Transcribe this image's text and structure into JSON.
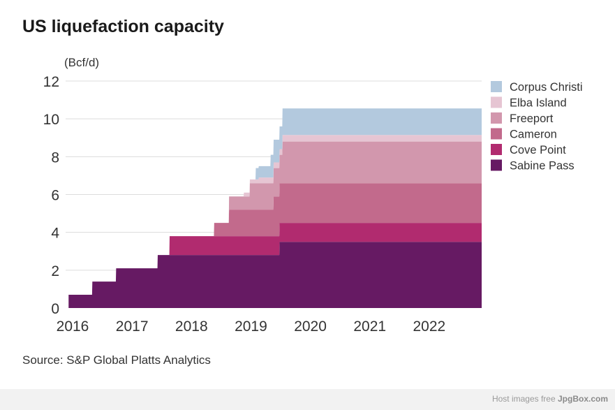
{
  "title": "US liquefaction capacity",
  "source": "Source: S&P Global Platts Analytics",
  "footer": {
    "prefix": "Host images free",
    "brand": "JpgBox.com"
  },
  "chart_data": {
    "type": "area",
    "title": "US liquefaction capacity",
    "ylabel": "(Bcf/d)",
    "xlabel": "",
    "xlim": [
      2016,
      2023
    ],
    "ylim": [
      0,
      12
    ],
    "yticks": [
      0,
      2,
      4,
      6,
      8,
      10,
      12
    ],
    "xticks": [
      2016,
      2017,
      2018,
      2019,
      2020,
      2021,
      2022
    ],
    "stacked": true,
    "step": true,
    "grid": true,
    "legend_position": "right",
    "series": [
      {
        "name": "Sabine Pass",
        "color": "#661a63",
        "points": [
          [
            2016.05,
            0.7
          ],
          [
            2016.45,
            1.4
          ],
          [
            2016.85,
            2.1
          ],
          [
            2017.55,
            2.8
          ],
          [
            2019.0,
            2.8
          ],
          [
            2019.6,
            3.5
          ],
          [
            2023.0,
            3.5
          ]
        ]
      },
      {
        "name": "Cove Point",
        "color": "#b12b6f",
        "points": [
          [
            2016.0,
            0.0
          ],
          [
            2017.75,
            1.0
          ],
          [
            2023.0,
            1.0
          ]
        ]
      },
      {
        "name": "Cameron",
        "color": "#c26a8c",
        "points": [
          [
            2016.0,
            0.0
          ],
          [
            2018.5,
            0.7
          ],
          [
            2018.75,
            1.4
          ],
          [
            2019.5,
            2.1
          ],
          [
            2019.8,
            2.1
          ],
          [
            2023.0,
            2.1
          ]
        ]
      },
      {
        "name": "Freeport",
        "color": "#d297ad",
        "points": [
          [
            2016.0,
            0.0
          ],
          [
            2018.75,
            0.7
          ],
          [
            2019.0,
            0.7
          ],
          [
            2019.1,
            1.4
          ],
          [
            2019.5,
            1.5
          ],
          [
            2019.65,
            2.2
          ],
          [
            2023.0,
            2.2
          ]
        ]
      },
      {
        "name": "Elba Island",
        "color": "#e6c5d3",
        "points": [
          [
            2016.0,
            0.0
          ],
          [
            2019.0,
            0.2
          ],
          [
            2019.25,
            0.3
          ],
          [
            2019.65,
            0.35
          ],
          [
            2023.0,
            0.35
          ]
        ]
      },
      {
        "name": "Corpus Christi",
        "color": "#b3c9de",
        "points": [
          [
            2016.0,
            0.0
          ],
          [
            2019.2,
            0.6
          ],
          [
            2019.45,
            1.2
          ],
          [
            2019.65,
            1.4
          ],
          [
            2023.0,
            1.4
          ]
        ]
      }
    ]
  }
}
